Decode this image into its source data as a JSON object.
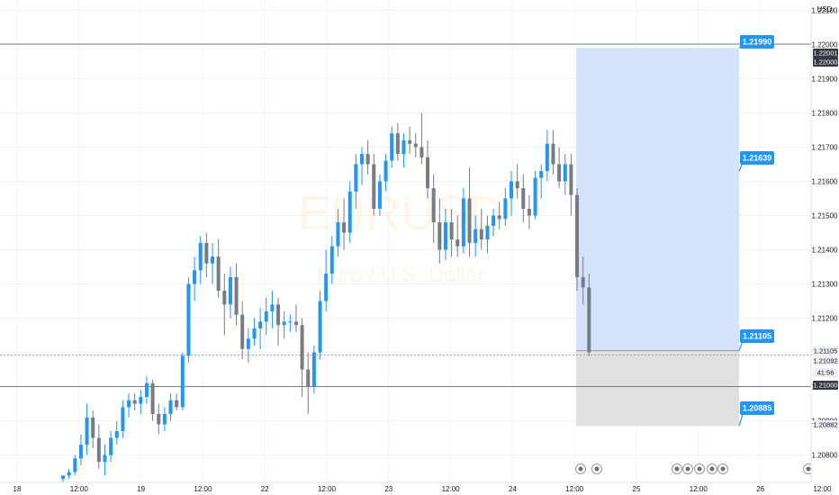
{
  "symbol_watermark": "EURUSD",
  "watermark_subtitle": "Euro / U.S. Dollar",
  "currency": "USD",
  "colors": {
    "up": "#2196f3",
    "down": "#787b86",
    "target_zone": "#d4e3f9",
    "stop_zone": "#e0e0e0",
    "badge": "#2196f3",
    "hline": "#787b86"
  },
  "price_scale": {
    "min": 1.2072,
    "max": 1.2213,
    "ticks": [
      "1.22100",
      "1.22000",
      "1.21900",
      "1.21800",
      "1.21700",
      "1.21600",
      "1.21500",
      "1.21400",
      "1.21300",
      "1.21200",
      "1.21100",
      "1.21000",
      "1.20900",
      "1.20800"
    ]
  },
  "time_axis": [
    "18",
    "12:00",
    "19",
    "12:00",
    "22",
    "12:00",
    "23",
    "12:00",
    "24",
    "12:00",
    "25",
    "12:00",
    "26",
    "12:00"
  ],
  "horizontal_lines": [
    1.22001,
    1.21092,
    1.21
  ],
  "price_tags": [
    {
      "text": "1.22001",
      "style": "dark"
    },
    {
      "text": "1.22000",
      "style": "dark"
    },
    {
      "text": "1.21105",
      "style": "light"
    },
    {
      "text": "1.21092",
      "style": "light"
    },
    {
      "text": "41:56",
      "style": "light"
    },
    {
      "text": "1.21000",
      "style": "dark"
    },
    {
      "text": "1.20882",
      "style": "light"
    }
  ],
  "position_tool": {
    "entry": 1.21105,
    "target": 1.2199,
    "stop": 1.20885,
    "badges": [
      "1.21990",
      "1.21639",
      "1.21105",
      "1.20885"
    ]
  },
  "chart_data": {
    "type": "candlestick",
    "ylim": [
      1.2072,
      1.2213
    ],
    "candles": [
      [
        1.2073,
        1.2074,
        1.2072,
        1.2074
      ],
      [
        1.2074,
        1.2076,
        1.2073,
        1.2075
      ],
      [
        1.2075,
        1.208,
        1.2074,
        1.2079
      ],
      [
        1.2079,
        1.2086,
        1.2077,
        1.2083
      ],
      [
        1.2083,
        1.2095,
        1.208,
        1.2091
      ],
      [
        1.2091,
        1.2093,
        1.2082,
        1.2085
      ],
      [
        1.2085,
        1.2089,
        1.2076,
        1.2078
      ],
      [
        1.2078,
        1.2083,
        1.2074,
        1.208
      ],
      [
        1.208,
        1.2087,
        1.2078,
        1.2085
      ],
      [
        1.2085,
        1.209,
        1.2083,
        1.2087
      ],
      [
        1.2087,
        1.2096,
        1.2085,
        1.2094
      ],
      [
        1.2094,
        1.2098,
        1.2091,
        1.2096
      ],
      [
        1.2096,
        1.2098,
        1.2093,
        1.2095
      ],
      [
        1.2095,
        1.2099,
        1.2092,
        1.2097
      ],
      [
        1.2097,
        1.2103,
        1.2095,
        1.2101
      ],
      [
        1.2101,
        1.2102,
        1.209,
        1.2092
      ],
      [
        1.2092,
        1.2095,
        1.2086,
        1.2089
      ],
      [
        1.2089,
        1.2094,
        1.2087,
        1.2092
      ],
      [
        1.2092,
        1.2098,
        1.209,
        1.2096
      ],
      [
        1.2096,
        1.2098,
        1.2093,
        1.2094
      ],
      [
        1.2094,
        1.211,
        1.2093,
        1.2109
      ],
      [
        1.2109,
        1.2132,
        1.2107,
        1.213
      ],
      [
        1.213,
        1.2138,
        1.2125,
        1.2134
      ],
      [
        1.2134,
        1.2144,
        1.213,
        1.2142
      ],
      [
        1.2142,
        1.2145,
        1.2132,
        1.2136
      ],
      [
        1.2136,
        1.2142,
        1.213,
        1.2138
      ],
      [
        1.2138,
        1.2143,
        1.2126,
        1.2128
      ],
      [
        1.2128,
        1.2133,
        1.2115,
        1.2124
      ],
      [
        1.2124,
        1.2135,
        1.212,
        1.2132
      ],
      [
        1.2132,
        1.2136,
        1.2118,
        1.2121
      ],
      [
        1.2121,
        1.2125,
        1.2108,
        1.2111
      ],
      [
        1.2111,
        1.2117,
        1.2107,
        1.2114
      ],
      [
        1.2114,
        1.212,
        1.2112,
        1.2117
      ],
      [
        1.2117,
        1.2123,
        1.2111,
        1.2119
      ],
      [
        1.2119,
        1.2126,
        1.2115,
        1.2122
      ],
      [
        1.2122,
        1.2128,
        1.2117,
        1.2124
      ],
      [
        1.2124,
        1.2126,
        1.2112,
        1.2118
      ],
      [
        1.2118,
        1.2122,
        1.2114,
        1.2119
      ],
      [
        1.2119,
        1.2121,
        1.2116,
        1.2119
      ],
      [
        1.2119,
        1.2124,
        1.2116,
        1.2118
      ],
      [
        1.2118,
        1.212,
        1.2097,
        1.2105
      ],
      [
        1.2105,
        1.211,
        1.2092,
        1.21
      ],
      [
        1.21,
        1.2112,
        1.2098,
        1.211
      ],
      [
        1.211,
        1.2128,
        1.2108,
        1.2125
      ],
      [
        1.2125,
        1.214,
        1.2122,
        1.2133
      ],
      [
        1.2133,
        1.2144,
        1.213,
        1.2141
      ],
      [
        1.2141,
        1.2152,
        1.2138,
        1.2148
      ],
      [
        1.2148,
        1.2155,
        1.214,
        1.2145
      ],
      [
        1.2145,
        1.216,
        1.2142,
        1.2157
      ],
      [
        1.2157,
        1.2168,
        1.2152,
        1.2165
      ],
      [
        1.2165,
        1.217,
        1.2159,
        1.2168
      ],
      [
        1.2168,
        1.2172,
        1.2162,
        1.2165
      ],
      [
        1.2165,
        1.2168,
        1.215,
        1.2152
      ],
      [
        1.2152,
        1.2162,
        1.215,
        1.216
      ],
      [
        1.216,
        1.2168,
        1.2157,
        1.2166
      ],
      [
        1.2166,
        1.2176,
        1.2164,
        1.2174
      ],
      [
        1.2174,
        1.2177,
        1.2166,
        1.2168
      ],
      [
        1.2168,
        1.2174,
        1.2164,
        1.2172
      ],
      [
        1.2172,
        1.2176,
        1.2168,
        1.2171
      ],
      [
        1.2171,
        1.2174,
        1.2167,
        1.217
      ],
      [
        1.217,
        1.218,
        1.2165,
        1.2167
      ],
      [
        1.2167,
        1.2172,
        1.2155,
        1.2158
      ],
      [
        1.2158,
        1.2162,
        1.2142,
        1.2148
      ],
      [
        1.2148,
        1.2155,
        1.2136,
        1.214
      ],
      [
        1.214,
        1.2152,
        1.2137,
        1.2148
      ],
      [
        1.2148,
        1.2152,
        1.2138,
        1.2143
      ],
      [
        1.2143,
        1.215,
        1.2138,
        1.2141
      ],
      [
        1.2141,
        1.2158,
        1.2139,
        1.2155
      ],
      [
        1.2155,
        1.2164,
        1.2138,
        1.2142
      ],
      [
        1.2142,
        1.215,
        1.2138,
        1.2146
      ],
      [
        1.2146,
        1.2152,
        1.214,
        1.2143
      ],
      [
        1.2143,
        1.215,
        1.2139,
        1.2147
      ],
      [
        1.2147,
        1.2152,
        1.2144,
        1.215
      ],
      [
        1.215,
        1.2154,
        1.2146,
        1.2149
      ],
      [
        1.2149,
        1.2158,
        1.2147,
        1.2155
      ],
      [
        1.2155,
        1.2163,
        1.215,
        1.216
      ],
      [
        1.216,
        1.2165,
        1.2155,
        1.2158
      ],
      [
        1.2158,
        1.2162,
        1.2148,
        1.2152
      ],
      [
        1.2152,
        1.2156,
        1.2146,
        1.215
      ],
      [
        1.215,
        1.2163,
        1.2149,
        1.2161
      ],
      [
        1.2161,
        1.2165,
        1.2155,
        1.2163
      ],
      [
        1.2163,
        1.2175,
        1.216,
        1.2171
      ],
      [
        1.2171,
        1.2175,
        1.2162,
        1.2165
      ],
      [
        1.2165,
        1.217,
        1.2158,
        1.216
      ],
      [
        1.216,
        1.2168,
        1.2156,
        1.2165
      ],
      [
        1.2165,
        1.2168,
        1.215,
        1.2156
      ],
      [
        1.2156,
        1.2158,
        1.2128,
        1.2132
      ],
      [
        1.2132,
        1.2138,
        1.2124,
        1.2129
      ],
      [
        1.2129,
        1.2133,
        1.2109,
        1.211
      ]
    ]
  }
}
